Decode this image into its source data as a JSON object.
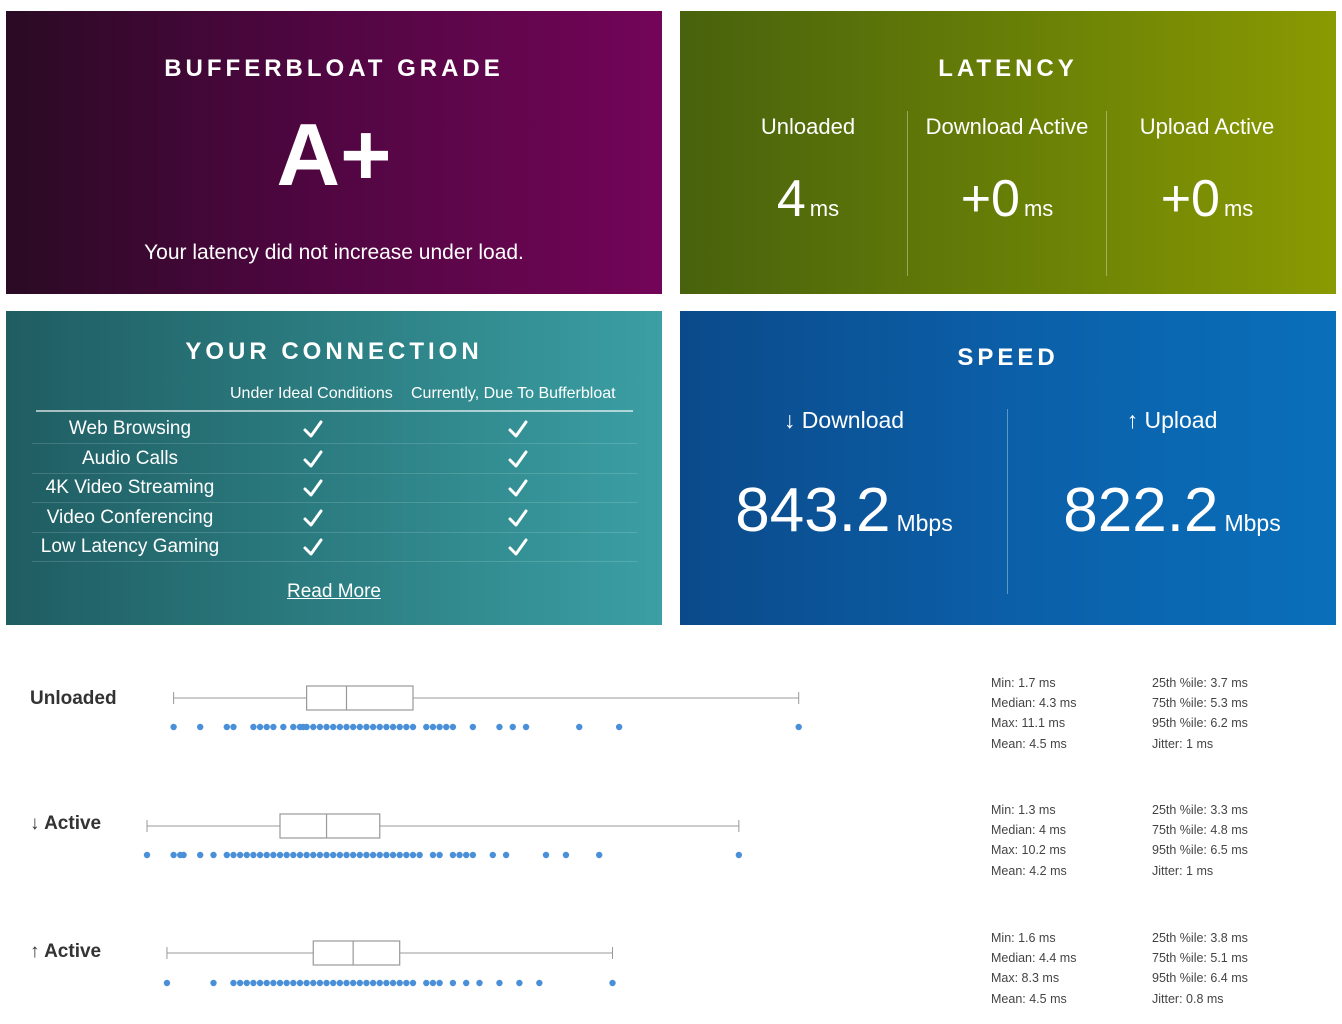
{
  "grade": {
    "title": "BUFFERBLOAT GRADE",
    "value": "A+",
    "message": "Your latency did not increase under load."
  },
  "latency": {
    "title": "LATENCY",
    "columns": [
      {
        "label": "Unloaded",
        "value": "4",
        "unit": "ms"
      },
      {
        "label": "Download Active",
        "value": "+0",
        "unit": "ms"
      },
      {
        "label": "Upload Active",
        "value": "+0",
        "unit": "ms"
      }
    ]
  },
  "connection": {
    "title": "YOUR CONNECTION",
    "header_ideal": "Under Ideal Conditions",
    "header_current": "Currently, Due To Bufferbloat",
    "rows": [
      {
        "label": "Web Browsing",
        "ideal": true,
        "current": true
      },
      {
        "label": "Audio Calls",
        "ideal": true,
        "current": true
      },
      {
        "label": "4K Video Streaming",
        "ideal": true,
        "current": true
      },
      {
        "label": "Video Conferencing",
        "ideal": true,
        "current": true
      },
      {
        "label": "Low Latency Gaming",
        "ideal": true,
        "current": true
      }
    ],
    "read_more": "Read More"
  },
  "speed": {
    "title": "SPEED",
    "download": {
      "label": "↓ Download",
      "value": "843.2",
      "unit": "Mbps"
    },
    "upload": {
      "label": "↑ Upload",
      "value": "822.2",
      "unit": "Mbps"
    }
  },
  "colors": {
    "dot": "#4a90d9",
    "box_stroke": "#999999"
  },
  "chart_data": {
    "type": "boxplot",
    "x_unit": "ms",
    "series": [
      {
        "name": "Unloaded",
        "min": 1.7,
        "q1": 3.7,
        "median": 4.3,
        "q3": 5.3,
        "max": 11.1,
        "points": [
          1.7,
          2.1,
          2.5,
          2.6,
          2.9,
          3.0,
          3.1,
          3.2,
          3.35,
          3.5,
          3.6,
          3.65,
          3.7,
          3.8,
          3.9,
          4.0,
          4.1,
          4.2,
          4.3,
          4.4,
          4.5,
          4.6,
          4.7,
          4.8,
          4.9,
          5.0,
          5.1,
          5.2,
          5.3,
          5.5,
          5.6,
          5.7,
          5.8,
          5.9,
          6.2,
          6.6,
          6.8,
          7.0,
          7.8,
          8.4,
          11.1
        ],
        "stats_left": [
          "Min: 1.7 ms",
          "Median: 4.3 ms",
          "Max: 11.1 ms",
          "Mean: 4.5 ms"
        ],
        "stats_right": [
          "25th %ile: 3.7 ms",
          "75th %ile: 5.3 ms",
          "95th %ile: 6.2 ms",
          "Jitter: 1 ms"
        ]
      },
      {
        "name": "↓ Active",
        "min": 1.3,
        "q1": 3.3,
        "median": 4.0,
        "q3": 4.8,
        "max": 10.2,
        "points": [
          1.3,
          1.7,
          1.8,
          1.85,
          2.1,
          2.3,
          2.5,
          2.6,
          2.7,
          2.8,
          2.9,
          3.0,
          3.1,
          3.2,
          3.3,
          3.4,
          3.5,
          3.6,
          3.7,
          3.8,
          3.9,
          4.0,
          4.1,
          4.2,
          4.3,
          4.4,
          4.5,
          4.6,
          4.7,
          4.8,
          4.9,
          5.0,
          5.1,
          5.2,
          5.3,
          5.4,
          5.6,
          5.7,
          5.9,
          6.0,
          6.1,
          6.2,
          6.5,
          6.7,
          7.3,
          7.6,
          8.1,
          10.2
        ],
        "stats_left": [
          "Min: 1.3 ms",
          "Median: 4 ms",
          "Max: 10.2 ms",
          "Mean: 4.2 ms"
        ],
        "stats_right": [
          "25th %ile: 3.3 ms",
          "75th %ile: 4.8 ms",
          "95th %ile: 6.5 ms",
          "Jitter: 1 ms"
        ]
      },
      {
        "name": "↑ Active",
        "min": 1.6,
        "q1": 3.8,
        "median": 4.4,
        "q3": 5.1,
        "max": 8.3,
        "points": [
          1.6,
          2.3,
          2.6,
          2.7,
          2.8,
          2.9,
          3.0,
          3.1,
          3.2,
          3.3,
          3.4,
          3.5,
          3.6,
          3.7,
          3.8,
          3.9,
          4.0,
          4.1,
          4.2,
          4.3,
          4.4,
          4.5,
          4.6,
          4.7,
          4.8,
          4.9,
          5.0,
          5.1,
          5.2,
          5.3,
          5.5,
          5.6,
          5.7,
          5.9,
          6.1,
          6.3,
          6.6,
          6.9,
          7.2,
          8.3
        ],
        "stats_left": [
          "Min: 1.6 ms",
          "Median: 4.4 ms",
          "Max: 8.3 ms",
          "Mean: 4.5 ms"
        ],
        "stats_right": [
          "25th %ile: 3.8 ms",
          "75th %ile: 5.1 ms",
          "95th %ile: 6.4 ms",
          "Jitter: 0.8 ms"
        ]
      }
    ]
  }
}
